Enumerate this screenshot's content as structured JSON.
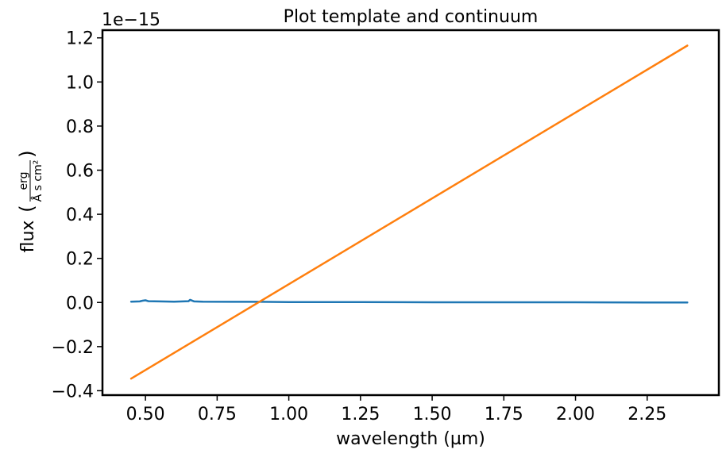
{
  "chart_data": {
    "type": "line",
    "title": "Plot template and continuum",
    "xlabel": "wavelength (µm)",
    "ylabel": "flux",
    "ylabel_unit": {
      "numerator": "erg",
      "denominator": "Å s cm²"
    },
    "offset_text": "1e−15",
    "xlim": [
      0.35,
      2.5
    ],
    "ylim": [
      -0.42,
      1.235
    ],
    "x_ticks": [
      0.5,
      0.75,
      1.0,
      1.25,
      1.5,
      1.75,
      2.0,
      2.25
    ],
    "x_tick_labels": [
      "0.50",
      "0.75",
      "1.00",
      "1.25",
      "1.50",
      "1.75",
      "2.00",
      "2.25"
    ],
    "y_ticks": [
      -0.4,
      -0.2,
      0.0,
      0.2,
      0.4,
      0.6,
      0.8,
      1.0,
      1.2
    ],
    "y_tick_labels": [
      "−0.4",
      "−0.2",
      "0.0",
      "0.2",
      "0.4",
      "0.6",
      "0.8",
      "1.0",
      "1.2"
    ],
    "grid": false,
    "legend": "none",
    "series": [
      {
        "color": "#1f77b4",
        "x": [
          0.45,
          0.48,
          0.49,
          0.5,
          0.51,
          0.55,
          0.6,
          0.65,
          0.656,
          0.67,
          0.7,
          0.8,
          0.9,
          1.0,
          1.25,
          1.5,
          1.75,
          2.0,
          2.25,
          2.39
        ],
        "y": [
          0.004,
          0.005,
          0.008,
          0.01,
          0.006,
          0.005,
          0.004,
          0.006,
          0.012,
          0.005,
          0.004,
          0.003,
          0.003,
          0.002,
          0.002,
          0.001,
          0.001,
          0.001,
          0.0,
          0.0
        ]
      },
      {
        "color": "#ff7f0e",
        "x": [
          0.45,
          2.39
        ],
        "y": [
          -0.345,
          1.165
        ]
      }
    ]
  }
}
